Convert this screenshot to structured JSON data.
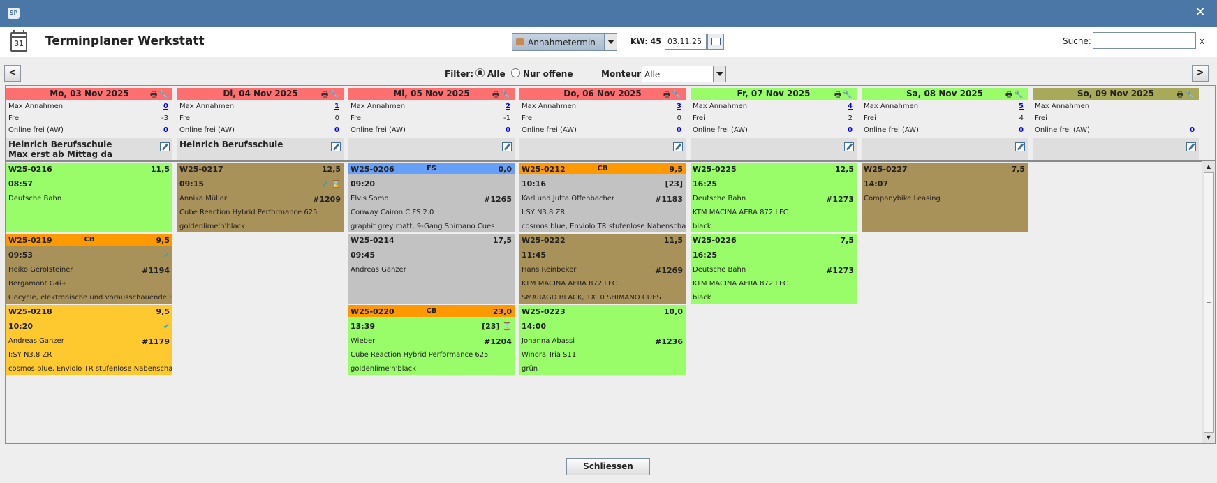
{
  "window": {
    "logo": "SP",
    "close": "✕"
  },
  "header": {
    "title": "Terminplaner Werkstatt",
    "calendar_icon_day": "31",
    "appointment_type": "Annahmetermin",
    "kw_label": "KW: 45",
    "date": "03.11.25",
    "search_label": "Suche:",
    "search_value": "",
    "search_clear": "x"
  },
  "filter": {
    "prev": "<",
    "next": ">",
    "label": "Filter:",
    "options": [
      "Alle",
      "Nur offene"
    ],
    "selected": "Alle",
    "monteur_label": "Monteur:",
    "monteur_value": "Alle"
  },
  "stat_labels": {
    "max": "Max Annahmen",
    "frei": "Frei",
    "online": "Online frei (AW)"
  },
  "days": [
    {
      "title": "Mo, 03 Nov 2025",
      "color": "#fe7070",
      "max": "0",
      "frei": "-3",
      "online": "0",
      "note": "Heinrich Berufsschule\nMax erst ab Mittag da"
    },
    {
      "title": "Di, 04 Nov 2025",
      "color": "#fe7070",
      "max": "1",
      "frei": "0",
      "online": "0",
      "note": "Heinrich Berufsschule"
    },
    {
      "title": "Mi, 05 Nov 2025",
      "color": "#fe7070",
      "max": "2",
      "frei": "-1",
      "online": "0",
      "note": ""
    },
    {
      "title": "Do, 06 Nov 2025",
      "color": "#fe7070",
      "max": "3",
      "frei": "0",
      "online": "0",
      "note": ""
    },
    {
      "title": "Fr, 07 Nov 2025",
      "color": "#98fd69",
      "max": "4",
      "frei": "2",
      "online": "0",
      "note": ""
    },
    {
      "title": "Sa, 08 Nov 2025",
      "color": "#98fd69",
      "max": "5",
      "frei": "4",
      "online": "0",
      "note": ""
    },
    {
      "title": "So, 09 Nov 2025",
      "color": "#a9a95a",
      "max": "",
      "frei": "",
      "online": "0",
      "note": ""
    }
  ],
  "appointments": {
    "c0_0": {
      "id": "W25-0216",
      "tag": "",
      "aw": "11,5",
      "time": "08:57",
      "marker": "",
      "customer": "Deutsche Bahn",
      "number": "",
      "bike": "",
      "color_text": ""
    },
    "c0_1": {
      "id": "W25-0219",
      "tag": "CB",
      "aw": "9,5",
      "time": "09:53",
      "marker": "✔",
      "customer": "Heiko Gerolsteiner",
      "number": "#1194",
      "bike": "Bergamont G4i+",
      "color_text": "Gocycle, elektronische und vorausschauende Schaltung"
    },
    "c0_2": {
      "id": "W25-0218",
      "tag": "",
      "aw": "9,5",
      "time": "10:20",
      "marker": "✔",
      "customer": "Andreas Ganzer",
      "number": "#1179",
      "bike": "I:SY N3.8 ZR",
      "color_text": "cosmos blue, Enviolo TR stufenlose Nabenschaltung"
    },
    "c1_0": {
      "id": "W25-0217",
      "tag": "",
      "aw": "12,5",
      "time": "09:15",
      "marker": "✔ ⌛",
      "customer": "Annika Müller",
      "number": "#1209",
      "bike": "Cube Reaction Hybrid Performance 625",
      "color_text": "goldenlime'n'black"
    },
    "c2_0": {
      "id": "W25-0206",
      "tag": "FS",
      "aw": "0,0",
      "time": "09:20",
      "marker": "",
      "customer": "Elvis Somo",
      "number": "#1265",
      "bike": "Conway Cairon C FS 2.0",
      "color_text": "graphit grey matt, 9-Gang Shimano Cues"
    },
    "c2_1": {
      "id": "W25-0214",
      "tag": "",
      "aw": "17,5",
      "time": "09:45",
      "marker": "",
      "customer": "Andreas Ganzer",
      "number": "",
      "bike": "",
      "color_text": ""
    },
    "c2_2": {
      "id": "W25-0220",
      "tag": "CB",
      "aw": "23,0",
      "time": "13:39",
      "marker": "[23] ⌛",
      "customer": "Wieber",
      "number": "#1204",
      "bike": "Cube Reaction Hybrid Performance 625",
      "color_text": "goldenlime'n'black"
    },
    "c3_0": {
      "id": "W25-0212",
      "tag": "CB",
      "aw": "9,5",
      "time": "10:16",
      "marker": "[23]",
      "customer": "Karl und Jutta Offenbacher",
      "number": "#1183",
      "bike": "I:SY N3.8 ZR",
      "color_text": "cosmos blue, Enviolo TR stufenlose Nabenschaltung"
    },
    "c3_1": {
      "id": "W25-0222",
      "tag": "",
      "aw": "11,5",
      "time": "11:45",
      "marker": "",
      "customer": "Hans Reinbeker",
      "number": "#1269",
      "bike": "KTM MACINA AERA 872 LFC",
      "color_text": "SMARAGD BLACK, 1X10 SHIMANO CUES"
    },
    "c3_2": {
      "id": "W25-0223",
      "tag": "",
      "aw": "10,0",
      "time": "14:00",
      "marker": "",
      "customer": "Johanna Abassi",
      "number": "#1236",
      "bike": "Winora Tria S11",
      "color_text": "grün"
    },
    "c4_0": {
      "id": "W25-0225",
      "tag": "",
      "aw": "12,5",
      "time": "16:25",
      "marker": "",
      "customer": "Deutsche Bahn",
      "number": "#1273",
      "bike": "KTM MACINA AERA 872 LFC",
      "color_text": "black"
    },
    "c4_1": {
      "id": "W25-0226",
      "tag": "",
      "aw": "7,5",
      "time": "16:25",
      "marker": "",
      "customer": "Deutsche Bahn",
      "number": "#1273",
      "bike": "KTM MACINA AERA 872 LFC",
      "color_text": "black"
    },
    "c5_0": {
      "id": "W25-0227",
      "tag": "",
      "aw": "7,5",
      "time": "14:07",
      "marker": "",
      "customer": "Companybike Leasing",
      "number": "",
      "bike": "",
      "color_text": ""
    }
  },
  "footer": {
    "close_label": "Schliessen"
  }
}
